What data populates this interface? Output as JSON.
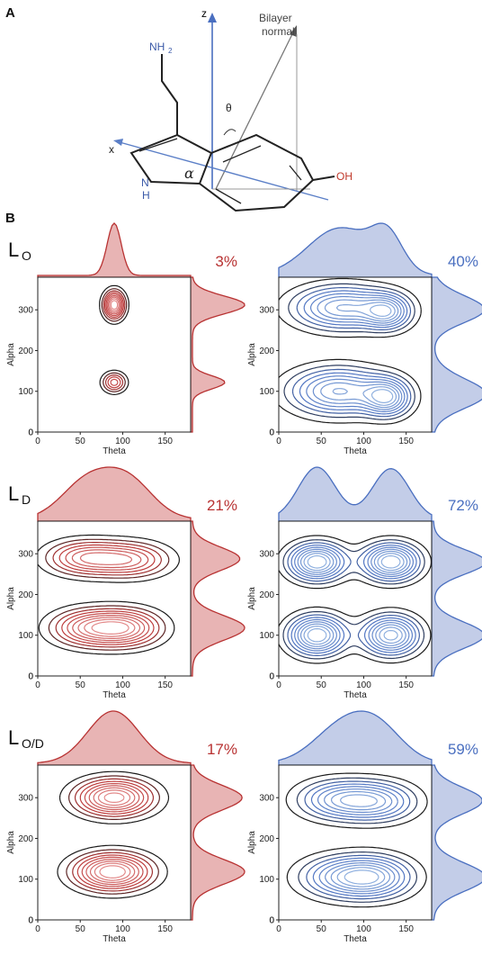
{
  "panel_a": {
    "letter": "A",
    "z_label": "z",
    "x_label": "x",
    "normal_line1": "Bilayer",
    "normal_line2": "normal",
    "theta": "θ",
    "alpha": "α",
    "nh2": "NH",
    "nh2_sub": "2",
    "nh_n": "N",
    "nh_h": "H",
    "oh": "OH"
  },
  "panel_b": {
    "letter": "B"
  },
  "colors": {
    "red": "#b83232",
    "red_fill": "#e8b4b4",
    "blue": "#4a6fc0",
    "blue_fill": "#c3cde8",
    "contour_dark": "#1a1a1a"
  },
  "rows": [
    {
      "state": "L",
      "state_sub": "O"
    },
    {
      "state": "L",
      "state_sub": "D"
    },
    {
      "state": "L",
      "state_sub": "O/D"
    }
  ],
  "chart_data": [
    {
      "type": "contour",
      "row": 0,
      "series_color": "red",
      "percent": "3%",
      "xlabel": "Theta",
      "ylabel": "Alpha",
      "xlim": [
        0,
        180
      ],
      "ylim": [
        0,
        380
      ],
      "xticks": [
        0,
        50,
        100,
        150
      ],
      "yticks": [
        0,
        100,
        200,
        300
      ],
      "peaks": [
        {
          "x": 90,
          "y": 312,
          "sx": 8,
          "sy": 22,
          "w": 1.0
        },
        {
          "x": 90,
          "y": 122,
          "sx": 9,
          "sy": 16,
          "w": 0.55
        }
      ]
    },
    {
      "type": "contour",
      "row": 0,
      "series_color": "blue",
      "percent": "40%",
      "xlabel": "Theta",
      "ylabel": "Alpha",
      "xlim": [
        0,
        180
      ],
      "ylim": [
        0,
        380
      ],
      "xticks": [
        0,
        50,
        100,
        150
      ],
      "yticks": [
        0,
        100,
        200,
        300
      ],
      "peaks": [
        {
          "x": 75,
          "y": 305,
          "sx": 38,
          "sy": 35,
          "w": 0.85
        },
        {
          "x": 128,
          "y": 295,
          "sx": 18,
          "sy": 28,
          "w": 0.7
        },
        {
          "x": 70,
          "y": 100,
          "sx": 38,
          "sy": 38,
          "w": 0.85
        },
        {
          "x": 128,
          "y": 85,
          "sx": 18,
          "sy": 30,
          "w": 0.8
        }
      ]
    },
    {
      "type": "contour",
      "row": 1,
      "series_color": "red",
      "percent": "21%",
      "xlabel": "Theta",
      "ylabel": "Alpha",
      "xlim": [
        0,
        180
      ],
      "ylim": [
        0,
        380
      ],
      "xticks": [
        0,
        50,
        100,
        150
      ],
      "yticks": [
        0,
        100,
        200,
        300
      ],
      "peaks": [
        {
          "x": 55,
          "y": 290,
          "sx": 30,
          "sy": 28,
          "w": 0.8
        },
        {
          "x": 110,
          "y": 285,
          "sx": 30,
          "sy": 28,
          "w": 0.75
        },
        {
          "x": 60,
          "y": 118,
          "sx": 30,
          "sy": 30,
          "w": 0.85
        },
        {
          "x": 105,
          "y": 118,
          "sx": 28,
          "sy": 30,
          "w": 0.9
        }
      ]
    },
    {
      "type": "contour",
      "row": 1,
      "series_color": "blue",
      "percent": "72%",
      "xlabel": "Theta",
      "ylabel": "Alpha",
      "xlim": [
        0,
        180
      ],
      "ylim": [
        0,
        380
      ],
      "xticks": [
        0,
        50,
        100,
        150
      ],
      "yticks": [
        0,
        100,
        200,
        300
      ],
      "peaks": [
        {
          "x": 45,
          "y": 280,
          "sx": 22,
          "sy": 30,
          "w": 0.9
        },
        {
          "x": 132,
          "y": 280,
          "sx": 22,
          "sy": 30,
          "w": 0.9
        },
        {
          "x": 45,
          "y": 100,
          "sx": 22,
          "sy": 32,
          "w": 0.9
        },
        {
          "x": 132,
          "y": 100,
          "sx": 22,
          "sy": 32,
          "w": 0.85
        }
      ]
    },
    {
      "type": "contour",
      "row": 2,
      "series_color": "red",
      "percent": "17%",
      "xlabel": "Theta",
      "ylabel": "Alpha",
      "xlim": [
        0,
        180
      ],
      "ylim": [
        0,
        380
      ],
      "xticks": [
        0,
        50,
        100,
        150
      ],
      "yticks": [
        0,
        100,
        200,
        300
      ],
      "peaks": [
        {
          "x": 90,
          "y": 300,
          "sx": 30,
          "sy": 30,
          "w": 0.95
        },
        {
          "x": 88,
          "y": 118,
          "sx": 30,
          "sy": 30,
          "w": 1.0
        }
      ]
    },
    {
      "type": "contour",
      "row": 2,
      "series_color": "blue",
      "percent": "59%",
      "xlabel": "Theta",
      "ylabel": "Alpha",
      "xlim": [
        0,
        180
      ],
      "ylim": [
        0,
        380
      ],
      "xticks": [
        0,
        50,
        100,
        150
      ],
      "yticks": [
        0,
        100,
        200,
        300
      ],
      "peaks": [
        {
          "x": 70,
          "y": 295,
          "sx": 32,
          "sy": 32,
          "w": 0.85
        },
        {
          "x": 118,
          "y": 290,
          "sx": 30,
          "sy": 32,
          "w": 0.8
        },
        {
          "x": 75,
          "y": 105,
          "sx": 34,
          "sy": 34,
          "w": 0.85
        },
        {
          "x": 115,
          "y": 105,
          "sx": 30,
          "sy": 34,
          "w": 0.85
        }
      ]
    }
  ]
}
